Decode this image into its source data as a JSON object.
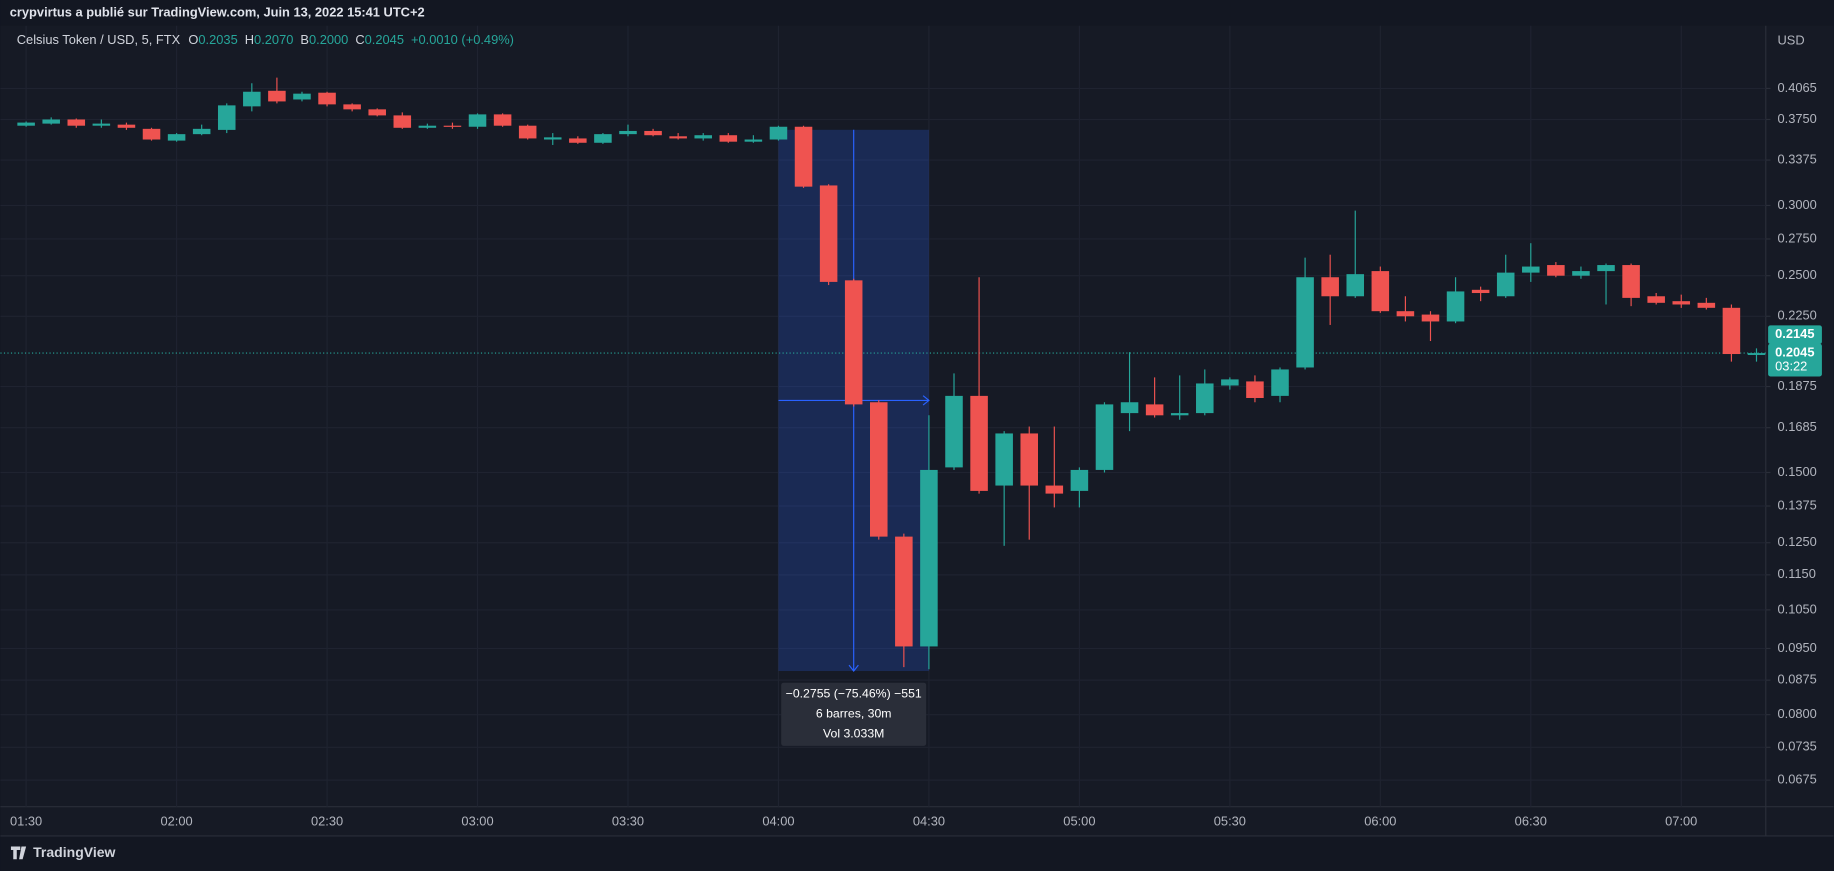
{
  "header": {
    "publisher": "crypvirtus a publié sur TradingView.com, Juin 13, 2022 15:41 UTC+2"
  },
  "footer": {
    "brand": "TradingView"
  },
  "chart_data": {
    "type": "candlestick",
    "symbol": "Celsius Token / USD, 5, FTX",
    "legend_fields": [
      {
        "key": "O",
        "text": "0.2035"
      },
      {
        "key": "H",
        "text": "0.2070"
      },
      {
        "key": "B",
        "text": "0.2000"
      },
      {
        "key": "C",
        "text": "0.2045"
      }
    ],
    "change": "+0.0010 (+0.49%)",
    "currency": "USD",
    "categories": [
      "01:30",
      null,
      null,
      null,
      null,
      null,
      "02:00",
      null,
      null,
      null,
      null,
      null,
      "02:30",
      null,
      null,
      null,
      null,
      null,
      "03:00",
      null,
      null,
      null,
      null,
      null,
      "03:30",
      null,
      null,
      null,
      null,
      null,
      "04:00",
      null,
      null,
      null,
      null,
      null,
      "04:30",
      null,
      null,
      null,
      null,
      null,
      "05:00",
      null,
      null,
      null,
      null,
      null,
      "05:30",
      null,
      null,
      null,
      null,
      null,
      "06:00",
      null,
      null,
      null,
      null,
      null,
      "06:30",
      null,
      null,
      null,
      null,
      null,
      "07:00",
      null,
      null,
      null
    ],
    "open": [
      0.369,
      0.371,
      0.375,
      0.369,
      0.37,
      0.366,
      0.355,
      0.361,
      0.365,
      0.388,
      0.404,
      0.395,
      0.402,
      0.39,
      0.385,
      0.379,
      0.367,
      0.369,
      0.368,
      0.38,
      0.369,
      0.356,
      0.357,
      0.353,
      0.361,
      0.364,
      0.359,
      0.357,
      0.36,
      0.354,
      0.356,
      0.368,
      0.316,
      0.247,
      0.18,
      0.127,
      0.0955,
      0.152,
      0.183,
      0.145,
      0.166,
      0.145,
      0.143,
      0.151,
      0.175,
      0.179,
      0.174,
      0.175,
      0.188,
      0.19,
      0.183,
      0.197,
      0.249,
      0.237,
      0.253,
      0.228,
      0.226,
      0.222,
      0.241,
      0.237,
      0.252,
      0.257,
      0.25,
      0.253,
      0.257,
      0.237,
      0.234,
      0.233,
      0.23,
      0.2035
    ],
    "high": [
      0.373,
      0.377,
      0.376,
      0.375,
      0.372,
      0.367,
      0.362,
      0.37,
      0.391,
      0.412,
      0.418,
      0.403,
      0.403,
      0.391,
      0.386,
      0.382,
      0.371,
      0.372,
      0.381,
      0.381,
      0.37,
      0.362,
      0.359,
      0.362,
      0.37,
      0.366,
      0.362,
      0.362,
      0.362,
      0.36,
      0.369,
      0.369,
      0.317,
      0.248,
      0.181,
      0.128,
      0.174,
      0.194,
      0.249,
      0.167,
      0.169,
      0.169,
      0.152,
      0.18,
      0.205,
      0.192,
      0.193,
      0.196,
      0.192,
      0.193,
      0.197,
      0.262,
      0.264,
      0.296,
      0.256,
      0.237,
      0.228,
      0.249,
      0.243,
      0.264,
      0.272,
      0.259,
      0.256,
      0.258,
      0.258,
      0.239,
      0.238,
      0.236,
      0.232,
      0.207
    ],
    "low": [
      0.368,
      0.37,
      0.367,
      0.367,
      0.365,
      0.355,
      0.354,
      0.36,
      0.362,
      0.383,
      0.391,
      0.393,
      0.388,
      0.383,
      0.378,
      0.366,
      0.366,
      0.366,
      0.366,
      0.368,
      0.356,
      0.351,
      0.352,
      0.352,
      0.359,
      0.359,
      0.356,
      0.355,
      0.353,
      0.353,
      0.355,
      0.314,
      0.244,
      0.178,
      0.126,
      0.0905,
      0.09,
      0.151,
      0.142,
      0.124,
      0.126,
      0.137,
      0.137,
      0.15,
      0.167,
      0.173,
      0.172,
      0.174,
      0.186,
      0.18,
      0.18,
      0.196,
      0.22,
      0.236,
      0.227,
      0.222,
      0.211,
      0.221,
      0.234,
      0.236,
      0.246,
      0.249,
      0.248,
      0.232,
      0.231,
      0.232,
      0.23,
      0.229,
      0.2,
      0.2
    ],
    "close": [
      0.372,
      0.375,
      0.369,
      0.371,
      0.367,
      0.356,
      0.361,
      0.366,
      0.389,
      0.403,
      0.393,
      0.401,
      0.39,
      0.385,
      0.379,
      0.367,
      0.369,
      0.368,
      0.38,
      0.369,
      0.357,
      0.358,
      0.353,
      0.361,
      0.364,
      0.36,
      0.357,
      0.36,
      0.354,
      0.356,
      0.368,
      0.315,
      0.246,
      0.179,
      0.127,
      0.0955,
      0.151,
      0.183,
      0.143,
      0.166,
      0.145,
      0.142,
      0.151,
      0.179,
      0.18,
      0.174,
      0.175,
      0.189,
      0.191,
      0.182,
      0.196,
      0.249,
      0.237,
      0.251,
      0.228,
      0.225,
      0.222,
      0.24,
      0.239,
      0.252,
      0.256,
      0.25,
      0.253,
      0.257,
      0.236,
      0.233,
      0.232,
      0.23,
      0.204,
      0.2045
    ],
    "up_color": "#26a69a",
    "down_color": "#ef5350",
    "log_scale": true,
    "grid": true,
    "ylim": [
      0.063,
      0.474
    ],
    "yticks": [
      0.4065,
      {
        "value": 0.375,
        "label": "0.3750"
      },
      0.3375,
      {
        "value": 0.3,
        "label": "0.3000"
      },
      {
        "value": 0.275,
        "label": "0.2750"
      },
      {
        "value": 0.25,
        "label": "0.2500"
      },
      {
        "value": 0.225,
        "label": "0.2250"
      },
      0.1875,
      0.1685,
      {
        "value": 0.15,
        "label": "0.1500"
      },
      0.1375,
      {
        "value": 0.125,
        "label": "0.1250"
      },
      {
        "value": 0.115,
        "label": "0.1150"
      },
      {
        "value": 0.105,
        "label": "0.1050"
      },
      {
        "value": 0.095,
        "label": "0.0950"
      },
      0.0875,
      {
        "value": 0.08,
        "label": "0.0800"
      },
      0.0735,
      0.0675
    ],
    "mark_price": 0.2145,
    "last_price": 0.2045,
    "countdown": "03:22",
    "measure": {
      "bars": [
        30,
        36
      ],
      "from": 0.3651,
      "to": 0.0896,
      "lines": [
        "−0.2755 (−75.46%) −551",
        "6 barres, 30m",
        "Vol 3.033M"
      ]
    }
  }
}
